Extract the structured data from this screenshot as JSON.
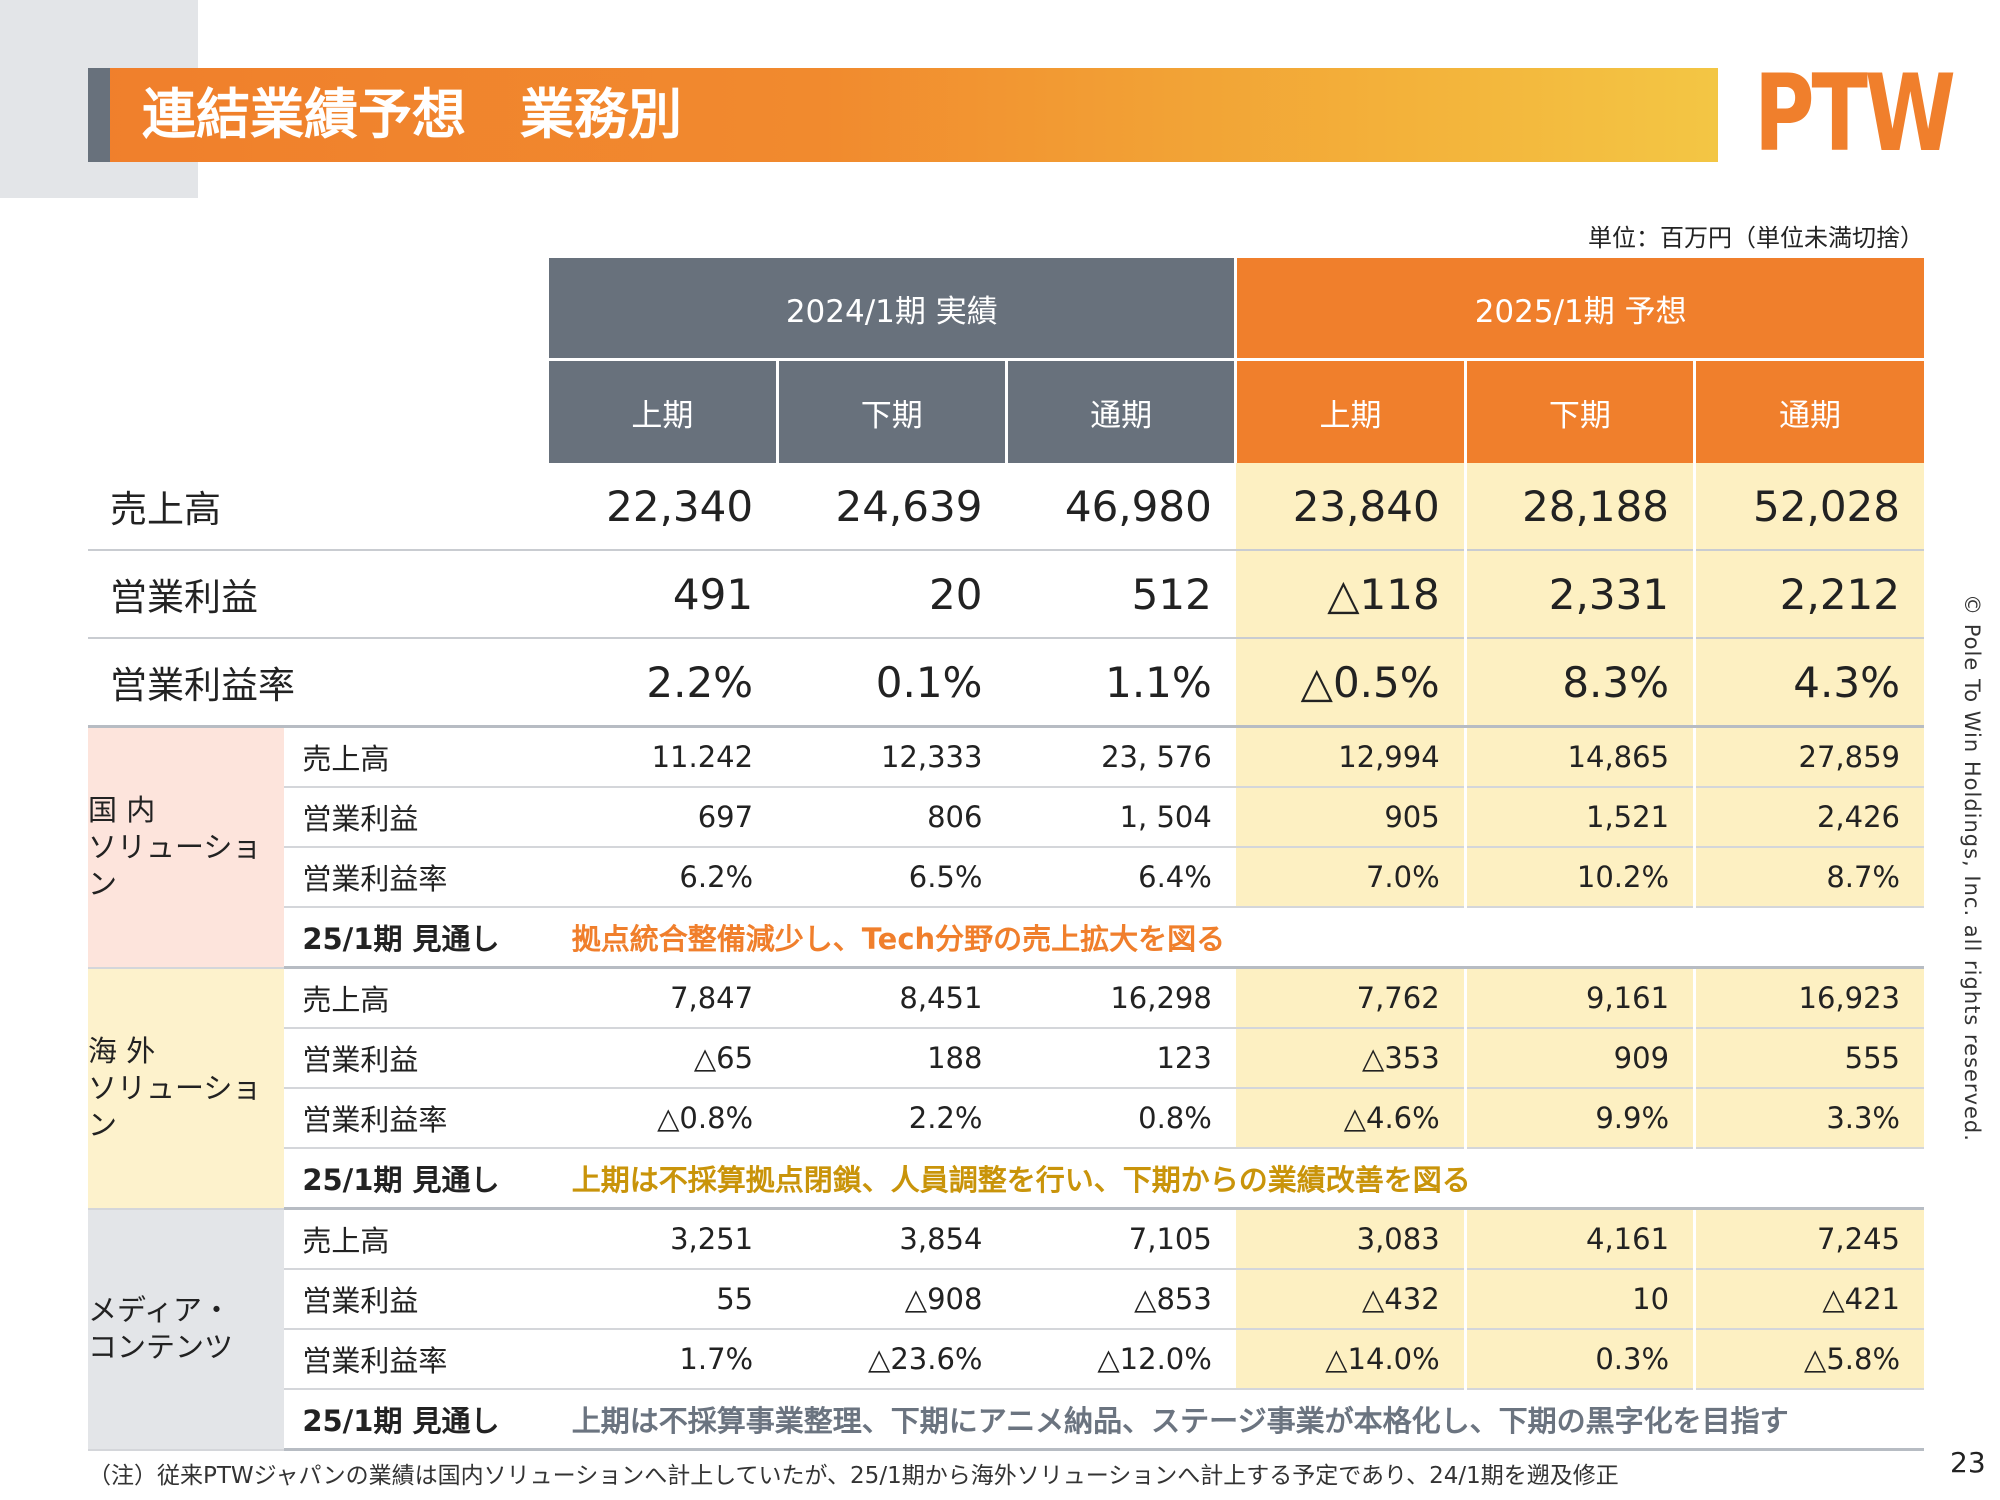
{
  "header": {
    "title": "連結業績予想　業務別",
    "logo": "PTW"
  },
  "unit_note": "単位：百万円（単位未満切捨）",
  "columns": {
    "actual_group": "2024/1期 実績",
    "forecast_group": "2025/1期 予想",
    "periods": [
      "上期",
      "下期",
      "通期",
      "上期",
      "下期",
      "通期"
    ]
  },
  "summary": [
    {
      "label": "売上高",
      "values": [
        "22,340",
        "24,639",
        "46,980",
        "23,840",
        "28,188",
        "52,028"
      ]
    },
    {
      "label": "営業利益",
      "values": [
        "491",
        "20",
        "512",
        "△118",
        "2,331",
        "2,212"
      ]
    },
    {
      "label": "営業利益率",
      "values": [
        "2.2%",
        "0.1%",
        "1.1%",
        "△0.5%",
        "8.3%",
        "4.3%"
      ]
    }
  ],
  "segments": [
    {
      "name_line1": "国 内",
      "name_line2": "ソリューション",
      "rows": [
        {
          "label": "売上高",
          "values": [
            "11.242",
            "12,333",
            "23, 576",
            "12,994",
            "14,865",
            "27,859"
          ]
        },
        {
          "label": "営業利益",
          "values": [
            "697",
            "806",
            "1, 504",
            "905",
            "1,521",
            "2,426"
          ]
        },
        {
          "label": "営業利益率",
          "values": [
            "6.2%",
            "6.5%",
            "6.4%",
            "7.0%",
            "10.2%",
            "8.7%"
          ]
        }
      ],
      "outlook_label": "25/1期 見通し",
      "outlook_text": "拠点統合整備減少し、Tech分野の売上拡大を図る",
      "outlook_color": "#f07f2c"
    },
    {
      "name_line1": "海 外",
      "name_line2": "ソリューション",
      "rows": [
        {
          "label": "売上高",
          "values": [
            "7,847",
            "8,451",
            "16,298",
            "7,762",
            "9,161",
            "16,923"
          ]
        },
        {
          "label": "営業利益",
          "values": [
            "△65",
            "188",
            "123",
            "△353",
            "909",
            "555"
          ]
        },
        {
          "label": "営業利益率",
          "values": [
            "△0.8%",
            "2.2%",
            "0.8%",
            "△4.6%",
            "9.9%",
            "3.3%"
          ]
        }
      ],
      "outlook_label": "25/1期 見通し",
      "outlook_text": "上期は不採算拠点閉鎖、人員調整を行い、下期からの業績改善を図る",
      "outlook_color": "#c9940a"
    },
    {
      "name_line1": "メディア・",
      "name_line2": "コンテンツ",
      "rows": [
        {
          "label": "売上高",
          "values": [
            "3,251",
            "3,854",
            "7,105",
            "3,083",
            "4,161",
            "7,245"
          ]
        },
        {
          "label": "営業利益",
          "values": [
            "55",
            "△908",
            "△853",
            "△432",
            "10",
            "△421"
          ]
        },
        {
          "label": "営業利益率",
          "values": [
            "1.7%",
            "△23.6%",
            "△12.0%",
            "△14.0%",
            "0.3%",
            "△5.8%"
          ]
        }
      ],
      "outlook_label": "25/1期 見通し",
      "outlook_text": "上期は不採算事業整理、下期にアニメ納品、ステージ事業が本格化し、下期の黒字化を目指す",
      "outlook_color": "#6b7480"
    }
  ],
  "footnote": "（注）従来PTWジャパンの業績は国内ソリューションへ計上していたが、25/1期から海外ソリューションへ計上する予定であり、24/1期を遡及修正",
  "copyright": "© Pole To Win Holdings, Inc. all rights reserved.",
  "page_number": "23"
}
